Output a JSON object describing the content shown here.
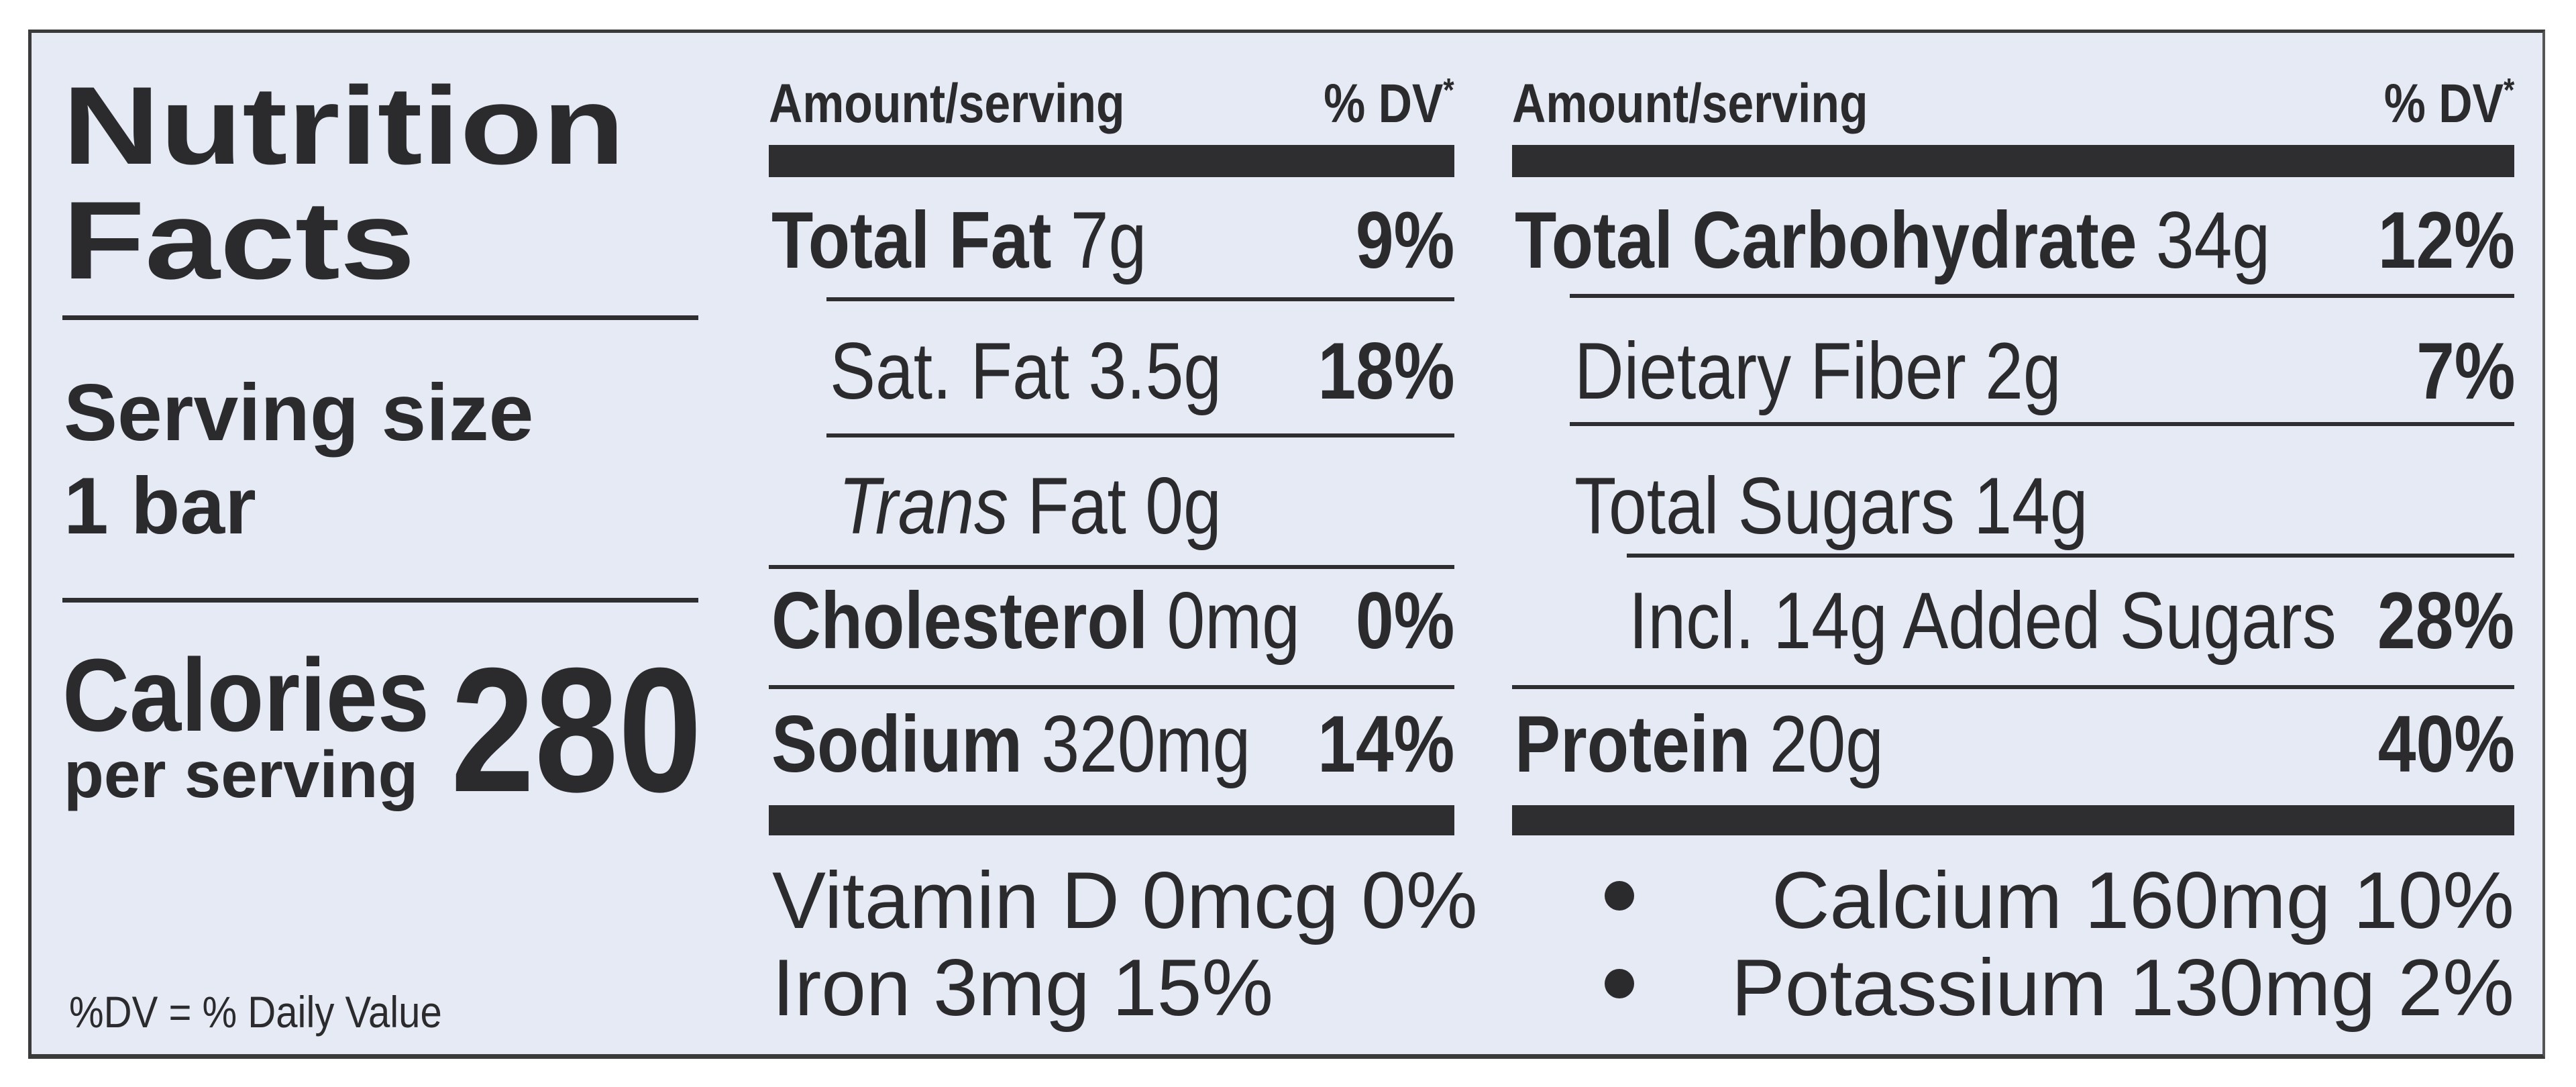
{
  "left": {
    "title_line1": "Nutrition",
    "title_line2": "Facts",
    "serving_label": "Serving size",
    "serving_value": "1 bar",
    "calories_label": "Calories",
    "calories_sub": "per serving",
    "calories_value": "280",
    "footnote": "%DV = % Daily Value"
  },
  "header": {
    "amount": "Amount/serving",
    "dv": "% DV",
    "asterisk": "*"
  },
  "middle_rows": [
    {
      "name": "Total Fat",
      "amount": "7g",
      "dv": "9%"
    },
    {
      "name": "Sat. Fat",
      "amount": "3.5g",
      "dv": "18%"
    },
    {
      "name": "Trans",
      "amount": "Fat 0g",
      "dv": ""
    },
    {
      "name": "Cholesterol",
      "amount": "0mg",
      "dv": "0%"
    },
    {
      "name": "Sodium",
      "amount": "320mg",
      "dv": "14%"
    }
  ],
  "right_rows": [
    {
      "name": "Total Carbohydrate",
      "amount": "34g",
      "dv": "12%"
    },
    {
      "name": "Dietary Fiber",
      "amount": "2g",
      "dv": "7%"
    },
    {
      "name": "Total Sugars",
      "amount": "14g",
      "dv": ""
    },
    {
      "name": "Incl. 14g Added Sugars",
      "amount": "",
      "dv": "28%"
    },
    {
      "name": "Protein",
      "amount": "20g",
      "dv": "40%"
    }
  ],
  "vitamins": {
    "vitamin_d": "Vitamin D 0mcg 0%",
    "iron": "Iron 3mg 15%",
    "calcium": "Calcium 160mg 10%",
    "potassium": "Potassium 130mg 2%"
  },
  "colors": {
    "background": "#e5eaf5",
    "ink": "#2b2b2d"
  }
}
